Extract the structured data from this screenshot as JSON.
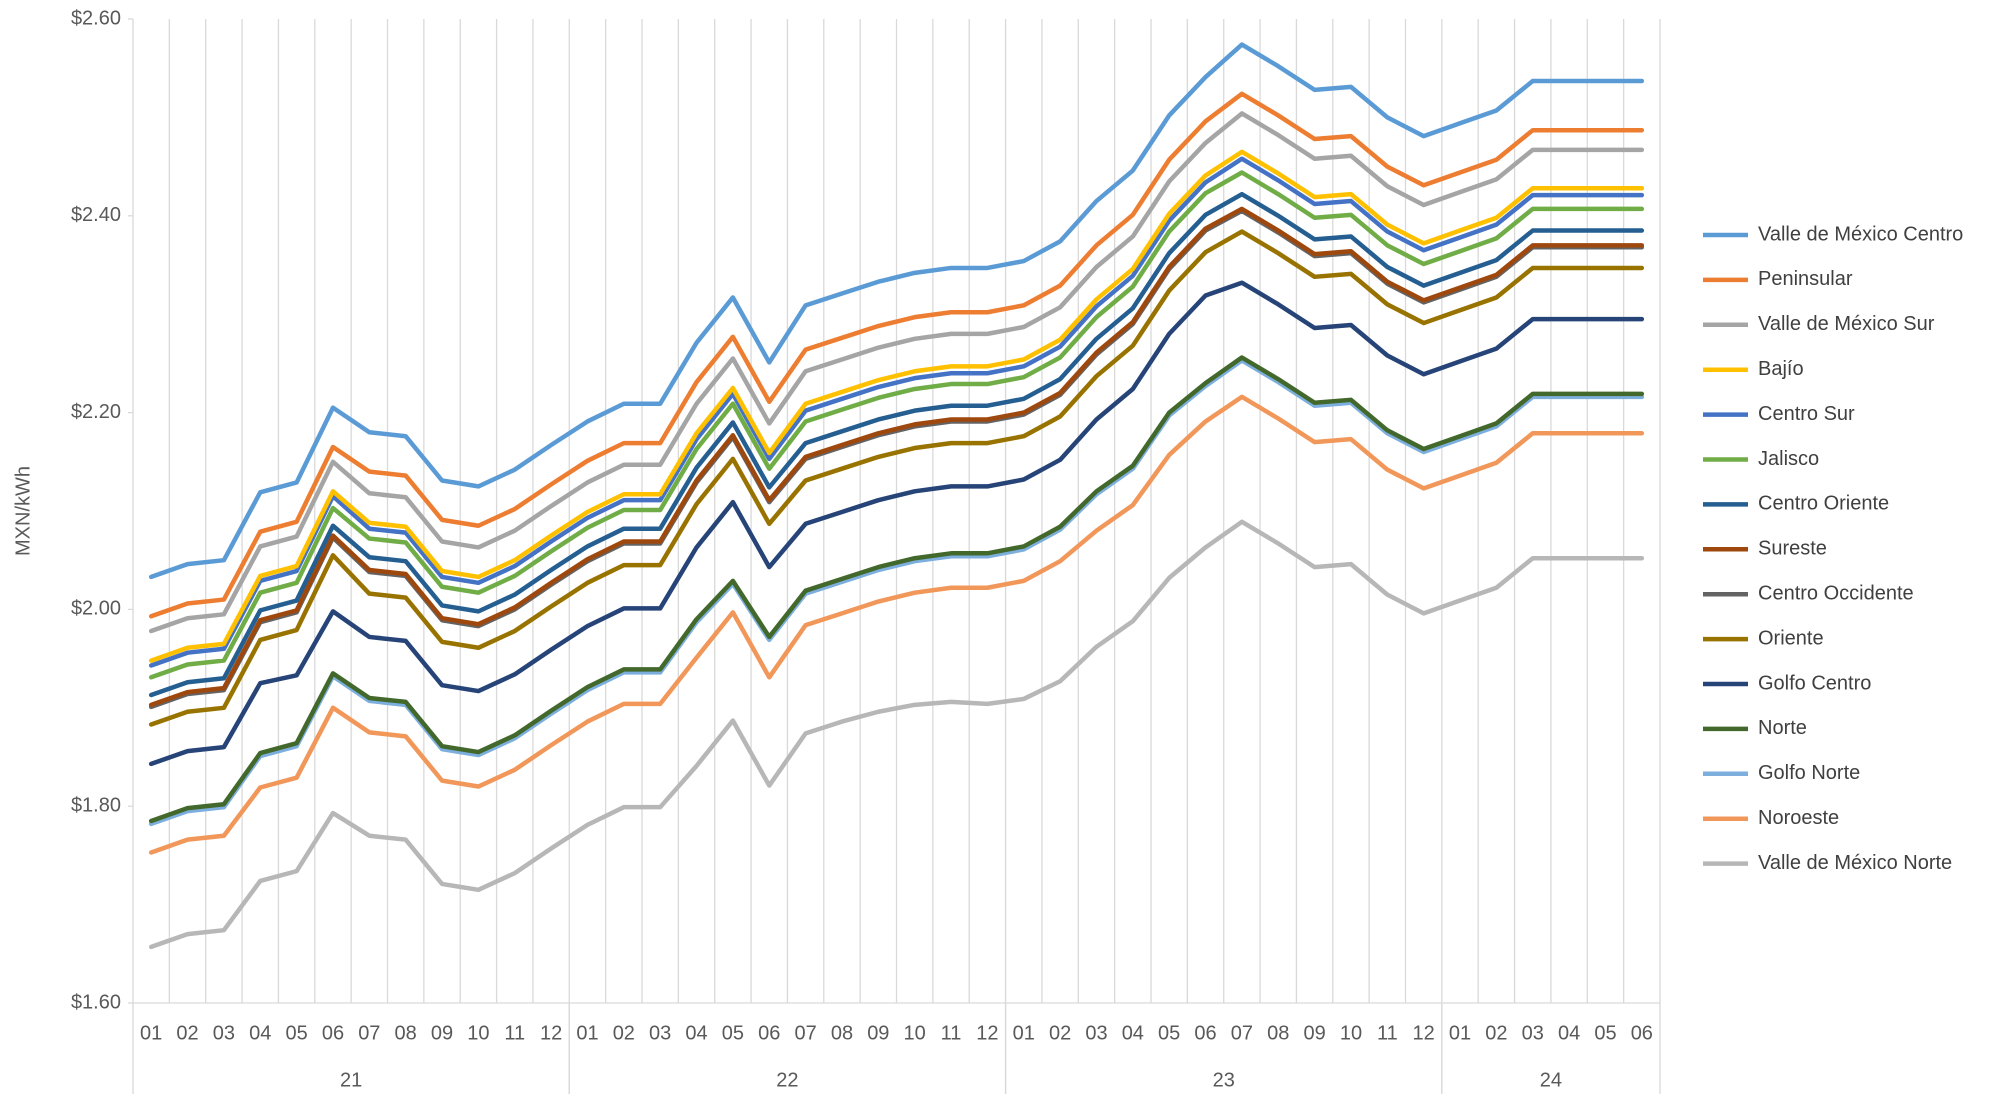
{
  "chart_data": {
    "type": "line",
    "y_label": "MXN/kWh",
    "categories": [
      "01",
      "02",
      "03",
      "04",
      "05",
      "06",
      "07",
      "08",
      "09",
      "10",
      "11",
      "12",
      "01",
      "02",
      "03",
      "04",
      "05",
      "06",
      "07",
      "08",
      "09",
      "10",
      "11",
      "12",
      "01",
      "02",
      "03",
      "04",
      "05",
      "06",
      "07",
      "08",
      "09",
      "10",
      "11",
      "12",
      "01",
      "02",
      "03",
      "04",
      "05",
      "06"
    ],
    "category_groups": [
      "21",
      "22",
      "23",
      "24"
    ],
    "ylim": [
      1.6,
      2.6
    ],
    "yticks": [
      {
        "value": 1.6,
        "label": "$1.60"
      },
      {
        "value": 1.8,
        "label": "$1.80"
      },
      {
        "value": 2.0,
        "label": "$2.00"
      },
      {
        "value": 2.2,
        "label": "$2.20"
      },
      {
        "value": 2.4,
        "label": "$2.40"
      },
      {
        "value": 2.6,
        "label": "$2.60"
      }
    ],
    "legend": "right",
    "series": [
      {
        "name": "Valle de México Centro",
        "color": "#5b9bd5",
        "values": [
          2.033,
          2.046,
          2.05,
          2.119,
          2.129,
          2.205,
          2.18,
          2.176,
          2.131,
          2.125,
          2.142,
          2.167,
          2.191,
          2.209,
          2.209,
          2.271,
          2.317,
          2.251,
          2.309,
          2.321,
          2.333,
          2.342,
          2.347,
          2.347,
          2.354,
          2.374,
          2.415,
          2.446,
          2.502,
          2.541,
          2.574,
          2.552,
          2.528,
          2.531,
          2.5,
          2.481,
          2.494,
          2.507,
          2.537,
          2.537,
          2.537,
          2.537
        ]
      },
      {
        "name": "Peninsular",
        "color": "#ed7d31",
        "values": [
          1.993,
          2.006,
          2.01,
          2.079,
          2.089,
          2.165,
          2.14,
          2.136,
          2.091,
          2.085,
          2.102,
          2.127,
          2.151,
          2.169,
          2.169,
          2.231,
          2.277,
          2.211,
          2.264,
          2.276,
          2.288,
          2.297,
          2.302,
          2.302,
          2.309,
          2.329,
          2.37,
          2.401,
          2.457,
          2.496,
          2.524,
          2.502,
          2.478,
          2.481,
          2.45,
          2.431,
          2.444,
          2.457,
          2.487,
          2.487,
          2.487,
          2.487
        ]
      },
      {
        "name": "Valle de México Sur",
        "color": "#a5a5a5",
        "values": [
          1.978,
          1.991,
          1.995,
          2.064,
          2.074,
          2.15,
          2.118,
          2.114,
          2.069,
          2.063,
          2.08,
          2.105,
          2.129,
          2.147,
          2.147,
          2.209,
          2.255,
          2.189,
          2.242,
          2.254,
          2.266,
          2.275,
          2.28,
          2.28,
          2.287,
          2.307,
          2.348,
          2.379,
          2.435,
          2.474,
          2.504,
          2.482,
          2.458,
          2.461,
          2.43,
          2.411,
          2.424,
          2.437,
          2.467,
          2.467,
          2.467,
          2.467
        ]
      },
      {
        "name": "Bajío",
        "color": "#ffc000",
        "values": [
          1.948,
          1.961,
          1.965,
          2.034,
          2.044,
          2.12,
          2.088,
          2.084,
          2.039,
          2.033,
          2.05,
          2.075,
          2.099,
          2.117,
          2.117,
          2.179,
          2.225,
          2.159,
          2.209,
          2.221,
          2.233,
          2.242,
          2.247,
          2.247,
          2.254,
          2.274,
          2.315,
          2.346,
          2.402,
          2.441,
          2.465,
          2.443,
          2.419,
          2.422,
          2.391,
          2.372,
          2.385,
          2.398,
          2.428,
          2.428,
          2.428,
          2.428
        ]
      },
      {
        "name": "Centro Sur",
        "color": "#4472c4",
        "values": [
          1.943,
          1.956,
          1.96,
          2.029,
          2.039,
          2.115,
          2.082,
          2.078,
          2.033,
          2.027,
          2.044,
          2.069,
          2.093,
          2.111,
          2.111,
          2.173,
          2.219,
          2.153,
          2.202,
          2.214,
          2.226,
          2.235,
          2.24,
          2.24,
          2.247,
          2.267,
          2.308,
          2.339,
          2.395,
          2.434,
          2.458,
          2.436,
          2.412,
          2.415,
          2.384,
          2.365,
          2.378,
          2.391,
          2.421,
          2.421,
          2.421,
          2.421
        ]
      },
      {
        "name": "Jalisco",
        "color": "#70ad47",
        "values": [
          1.931,
          1.944,
          1.948,
          2.017,
          2.027,
          2.103,
          2.072,
          2.068,
          2.023,
          2.017,
          2.034,
          2.059,
          2.083,
          2.101,
          2.101,
          2.163,
          2.209,
          2.143,
          2.191,
          2.203,
          2.215,
          2.224,
          2.229,
          2.229,
          2.236,
          2.256,
          2.297,
          2.328,
          2.384,
          2.423,
          2.444,
          2.422,
          2.398,
          2.401,
          2.37,
          2.351,
          2.364,
          2.377,
          2.407,
          2.407,
          2.407,
          2.407
        ]
      },
      {
        "name": "Centro Oriente",
        "color": "#255e91",
        "values": [
          1.913,
          1.926,
          1.93,
          1.999,
          2.009,
          2.085,
          2.053,
          2.049,
          2.004,
          1.998,
          2.015,
          2.04,
          2.064,
          2.082,
          2.082,
          2.144,
          2.19,
          2.124,
          2.169,
          2.181,
          2.193,
          2.202,
          2.207,
          2.207,
          2.214,
          2.234,
          2.275,
          2.306,
          2.362,
          2.401,
          2.422,
          2.4,
          2.376,
          2.379,
          2.348,
          2.329,
          2.342,
          2.355,
          2.385,
          2.385,
          2.385,
          2.385
        ]
      },
      {
        "name": "Sureste",
        "color": "#9e480e",
        "values": [
          1.903,
          1.916,
          1.92,
          1.989,
          1.999,
          2.075,
          2.04,
          2.036,
          1.991,
          1.985,
          2.002,
          2.027,
          2.051,
          2.069,
          2.069,
          2.131,
          2.177,
          2.111,
          2.155,
          2.167,
          2.179,
          2.188,
          2.193,
          2.193,
          2.2,
          2.22,
          2.261,
          2.292,
          2.348,
          2.387,
          2.407,
          2.385,
          2.361,
          2.364,
          2.333,
          2.314,
          2.327,
          2.34,
          2.37,
          2.37,
          2.37,
          2.37
        ]
      },
      {
        "name": "Centro Occidente",
        "color": "#636363",
        "values": [
          1.901,
          1.914,
          1.918,
          1.987,
          1.997,
          2.073,
          2.038,
          2.034,
          1.989,
          1.983,
          2.0,
          2.025,
          2.049,
          2.067,
          2.067,
          2.129,
          2.175,
          2.109,
          2.153,
          2.165,
          2.177,
          2.186,
          2.191,
          2.191,
          2.198,
          2.218,
          2.259,
          2.29,
          2.346,
          2.385,
          2.405,
          2.383,
          2.359,
          2.362,
          2.331,
          2.312,
          2.325,
          2.338,
          2.368,
          2.368,
          2.368,
          2.368
        ]
      },
      {
        "name": "Oriente",
        "color": "#997300",
        "values": [
          1.883,
          1.896,
          1.9,
          1.969,
          1.979,
          2.055,
          2.016,
          2.012,
          1.967,
          1.961,
          1.978,
          2.003,
          2.027,
          2.045,
          2.045,
          2.107,
          2.153,
          2.087,
          2.131,
          2.143,
          2.155,
          2.164,
          2.169,
          2.169,
          2.176,
          2.196,
          2.237,
          2.268,
          2.324,
          2.363,
          2.384,
          2.362,
          2.338,
          2.341,
          2.31,
          2.291,
          2.304,
          2.317,
          2.347,
          2.347,
          2.347,
          2.347
        ]
      },
      {
        "name": "Golfo Centro",
        "color": "#264478",
        "values": [
          1.843,
          1.856,
          1.86,
          1.925,
          1.933,
          1.998,
          1.972,
          1.968,
          1.923,
          1.917,
          1.934,
          1.959,
          1.983,
          2.001,
          2.001,
          2.063,
          2.109,
          2.043,
          2.087,
          2.099,
          2.111,
          2.12,
          2.125,
          2.125,
          2.132,
          2.152,
          2.193,
          2.224,
          2.28,
          2.319,
          2.332,
          2.31,
          2.286,
          2.289,
          2.258,
          2.239,
          2.252,
          2.265,
          2.295,
          2.295,
          2.295,
          2.295
        ]
      },
      {
        "name": "Norte",
        "color": "#43682b",
        "values": [
          1.785,
          1.798,
          1.802,
          1.854,
          1.864,
          1.935,
          1.91,
          1.906,
          1.861,
          1.855,
          1.872,
          1.897,
          1.921,
          1.939,
          1.939,
          1.99,
          2.029,
          1.972,
          2.019,
          2.031,
          2.043,
          2.052,
          2.057,
          2.057,
          2.064,
          2.084,
          2.12,
          2.146,
          2.2,
          2.23,
          2.256,
          2.234,
          2.21,
          2.213,
          2.182,
          2.163,
          2.176,
          2.189,
          2.219,
          2.219,
          2.219,
          2.219
        ]
      },
      {
        "name": "Golfo Norte",
        "color": "#7cafdd",
        "values": [
          1.782,
          1.795,
          1.799,
          1.851,
          1.861,
          1.932,
          1.907,
          1.903,
          1.858,
          1.852,
          1.869,
          1.894,
          1.918,
          1.936,
          1.936,
          1.987,
          2.026,
          1.969,
          2.016,
          2.028,
          2.04,
          2.049,
          2.054,
          2.054,
          2.061,
          2.081,
          2.117,
          2.143,
          2.197,
          2.227,
          2.253,
          2.231,
          2.207,
          2.21,
          2.179,
          2.16,
          2.173,
          2.186,
          2.216,
          2.216,
          2.216,
          2.216
        ]
      },
      {
        "name": "Noroeste",
        "color": "#f1975a",
        "values": [
          1.753,
          1.766,
          1.77,
          1.819,
          1.829,
          1.9,
          1.875,
          1.871,
          1.826,
          1.82,
          1.837,
          1.862,
          1.886,
          1.904,
          1.904,
          1.951,
          1.997,
          1.931,
          1.984,
          1.996,
          2.008,
          2.017,
          2.022,
          2.022,
          2.029,
          2.049,
          2.08,
          2.106,
          2.157,
          2.191,
          2.216,
          2.194,
          2.17,
          2.173,
          2.142,
          2.123,
          2.136,
          2.149,
          2.179,
          2.179,
          2.179,
          2.179
        ]
      },
      {
        "name": "Valle de México Norte",
        "color": "#b7b7b7",
        "values": [
          1.657,
          1.67,
          1.674,
          1.724,
          1.734,
          1.793,
          1.77,
          1.766,
          1.721,
          1.715,
          1.732,
          1.757,
          1.781,
          1.799,
          1.799,
          1.841,
          1.887,
          1.821,
          1.874,
          1.886,
          1.896,
          1.903,
          1.906,
          1.904,
          1.909,
          1.927,
          1.962,
          1.988,
          2.032,
          2.063,
          2.089,
          2.067,
          2.043,
          2.046,
          2.015,
          1.996,
          2.009,
          2.022,
          2.052,
          2.052,
          2.052,
          2.052
        ]
      }
    ]
  }
}
